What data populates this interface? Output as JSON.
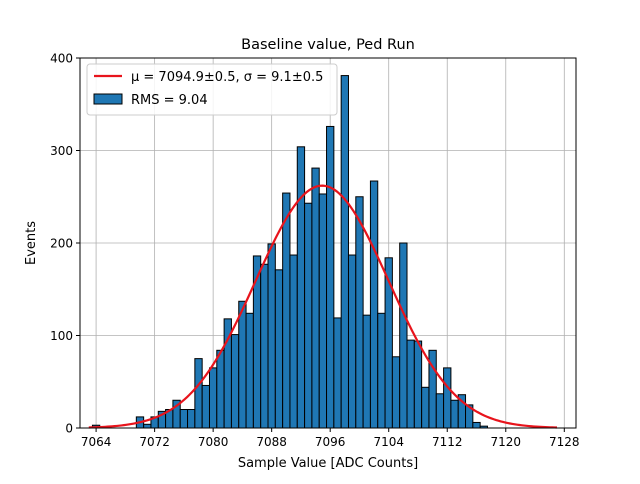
{
  "chart_data": {
    "type": "bar",
    "title": "Baseline value, Ped Run",
    "xlabel": "Sample Value [ADC Counts]",
    "ylabel": "Events",
    "xlim": [
      7061.8,
      7129.6
    ],
    "ylim": [
      0,
      400
    ],
    "x_ticks": [
      7064,
      7072,
      7080,
      7088,
      7096,
      7104,
      7112,
      7120,
      7128
    ],
    "y_ticks": [
      0,
      100,
      200,
      300,
      400
    ],
    "grid": true,
    "legend_position": "top-left",
    "bin_width": 1,
    "x": [
      7064,
      7065,
      7066,
      7067,
      7068,
      7069,
      7070,
      7071,
      7072,
      7073,
      7074,
      7075,
      7076,
      7077,
      7078,
      7079,
      7080,
      7081,
      7082,
      7083,
      7084,
      7085,
      7086,
      7087,
      7088,
      7089,
      7090,
      7091,
      7092,
      7093,
      7094,
      7095,
      7096,
      7097,
      7098,
      7099,
      7100,
      7101,
      7102,
      7103,
      7104,
      7105,
      7106,
      7107,
      7108,
      7109,
      7110,
      7111,
      7112,
      7113,
      7114,
      7115,
      7116,
      7117
    ],
    "values": [
      3,
      0,
      0,
      0,
      0,
      0,
      12,
      4,
      12,
      18,
      20,
      30,
      20,
      20,
      75,
      46,
      65,
      84,
      118,
      101,
      137,
      124,
      186,
      177,
      199,
      171,
      254,
      187,
      304,
      243,
      281,
      253,
      326,
      119,
      381,
      187,
      250,
      122,
      267,
      124,
      184,
      77,
      200,
      95,
      94,
      44,
      84,
      37,
      65,
      30,
      36,
      25,
      6,
      2
    ],
    "series": [
      {
        "name": "RMS = 9.04",
        "kind": "histogram",
        "color": "#1f77b4",
        "edge_color": "#000000"
      },
      {
        "name": "μ = 7094.9±0.5, σ = 9.1±0.5",
        "kind": "gaussian-fit",
        "color": "#e8141c",
        "mu": 7094.9,
        "sigma": 9.1,
        "amplitude": 262,
        "x_range": [
          7063,
          7127
        ]
      }
    ]
  }
}
